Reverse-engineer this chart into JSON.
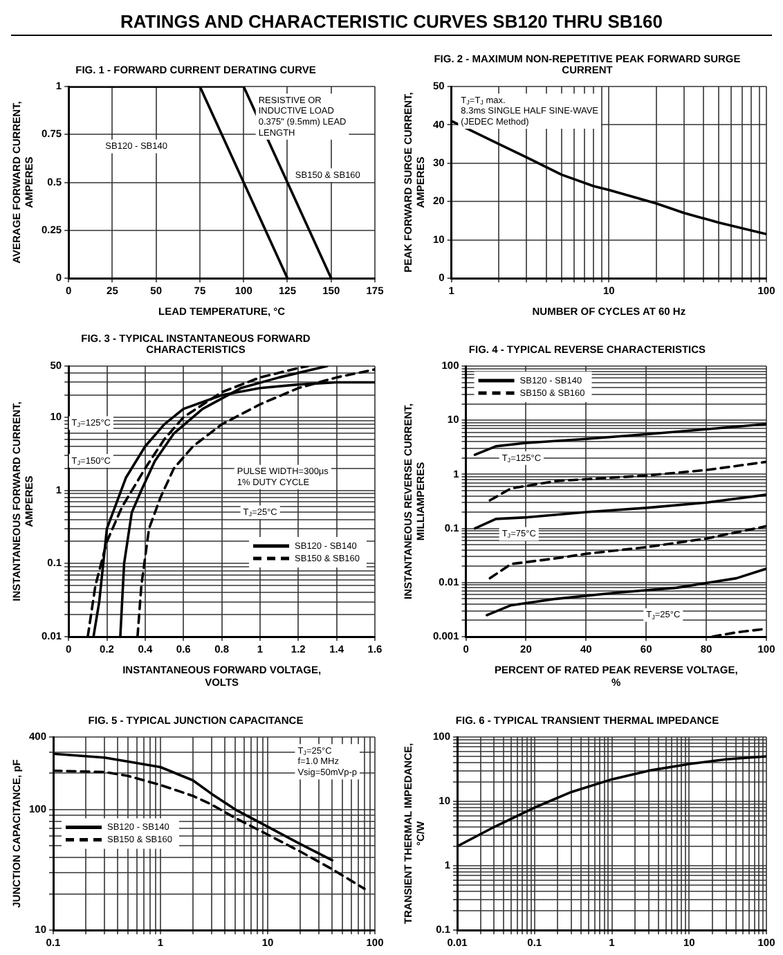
{
  "chart_data": [
    {
      "type": "other",
      "title": "RATINGS AND CHARACTERISTIC CURVES SB120 THRU SB160"
    },
    {
      "type": "line",
      "title": "FIG. 1 - FORWARD CURRENT DERATING CURVE",
      "xlabel": "LEAD TEMPERATURE, °C",
      "ylabel": "AVERAGE FORWARD CURRENT, AMPERES",
      "xlim": [
        0,
        175
      ],
      "xticks": [
        0,
        25,
        50,
        75,
        100,
        125,
        150,
        175
      ],
      "ylim": [
        0,
        1
      ],
      "yticks": [
        0,
        0.25,
        0.5,
        0.75,
        1
      ],
      "grid": true,
      "series": [
        {
          "color": "#000000",
          "x": [
            0,
            75,
            125
          ],
          "values": [
            1,
            1,
            0
          ]
        },
        {
          "color": "#000000",
          "x": [
            0,
            100,
            150
          ],
          "values": [
            1,
            1,
            0
          ]
        }
      ],
      "annotations": [
        "RESISTIVE OR\nINDUCTIVE LOAD\n0.375\" (9.5mm) LEAD\nLENGTH",
        "SB120 - SB140",
        "SB150 & SB160"
      ]
    },
    {
      "type": "line",
      "title": "FIG. 2 - MAXIMUM NON-REPETITIVE PEAK FORWARD SURGE CURRENT",
      "xlabel": "NUMBER OF CYCLES AT 60 Hz",
      "ylabel": "PEAK FORWARD SURGE CURRENT, AMPERES",
      "log": "x",
      "xlim": [
        1,
        100
      ],
      "xticks": [
        1,
        {
          "value": 2,
          "label": null
        },
        {
          "value": 3,
          "label": null
        },
        {
          "value": 4,
          "label": null
        },
        {
          "value": 5,
          "label": null
        },
        {
          "value": 6,
          "label": null
        },
        {
          "value": 7,
          "label": null
        },
        {
          "value": 8,
          "label": null
        },
        {
          "value": 9,
          "label": null
        },
        10,
        {
          "value": 20,
          "label": null
        },
        {
          "value": 30,
          "label": null
        },
        {
          "value": 40,
          "label": null
        },
        {
          "value": 50,
          "label": null
        },
        {
          "value": 60,
          "label": null
        },
        {
          "value": 70,
          "label": null
        },
        {
          "value": 80,
          "label": null
        },
        {
          "value": 90,
          "label": null
        },
        100
      ],
      "ylim": [
        0,
        50
      ],
      "yticks": [
        0,
        10,
        20,
        30,
        40,
        50
      ],
      "grid": true,
      "series": [
        {
          "color": "#000000",
          "x": [
            1,
            2,
            3,
            5,
            8,
            10,
            20,
            30,
            50,
            100
          ],
          "values": [
            41,
            35,
            31.5,
            27,
            24,
            23,
            19.5,
            17,
            14.5,
            11.5
          ]
        }
      ],
      "annotations": [
        "T$_{J}$=T$_{J}$ max.\n8.3ms SINGLE HALF SINE-WAVE\n(JEDEC Method)"
      ]
    },
    {
      "type": "line",
      "title": "FIG. 3 - TYPICAL INSTANTANEOUS FORWARD CHARACTERISTICS",
      "xlabel": "INSTANTANEOUS FORWARD VOLTAGE, VOLTS",
      "ylabel": "INSTANTANEOUS FORWARD CURRENT, AMPERES",
      "log": "y",
      "xlim": [
        0,
        1.6
      ],
      "xticks": [
        0,
        0.2,
        0.4,
        0.6,
        0.8,
        1.0,
        1.2,
        1.4,
        1.6
      ],
      "ylim": [
        0.01,
        50
      ],
      "yticks": [
        0.01,
        {
          "value": 0.02,
          "label": null
        },
        {
          "value": 0.03,
          "label": null
        },
        {
          "value": 0.04,
          "label": null
        },
        {
          "value": 0.05,
          "label": null
        },
        {
          "value": 0.06,
          "label": null
        },
        {
          "value": 0.07,
          "label": null
        },
        {
          "value": 0.08,
          "label": null
        },
        {
          "value": 0.09,
          "label": null
        },
        0.1,
        {
          "value": 0.2,
          "label": null
        },
        {
          "value": 0.3,
          "label": null
        },
        {
          "value": 0.4,
          "label": null
        },
        {
          "value": 0.5,
          "label": null
        },
        {
          "value": 0.6,
          "label": null
        },
        {
          "value": 0.7,
          "label": null
        },
        {
          "value": 0.8,
          "label": null
        },
        {
          "value": 0.9,
          "label": null
        },
        1,
        {
          "value": 2,
          "label": null
        },
        {
          "value": 3,
          "label": null
        },
        {
          "value": 4,
          "label": null
        },
        {
          "value": 5,
          "label": null
        },
        {
          "value": 6,
          "label": null
        },
        {
          "value": 7,
          "label": null
        },
        {
          "value": 8,
          "label": null
        },
        {
          "value": 9,
          "label": null
        },
        10,
        {
          "value": 20,
          "label": null
        },
        {
          "value": 30,
          "label": null
        },
        {
          "value": 40,
          "label": null
        },
        50
      ],
      "grid": true,
      "legend": "bottom right",
      "series": [
        {
          "name": "SB120 - SB140",
          "color": "#000000",
          "line_style": "solid",
          "x": [
            0.13,
            0.16,
            0.2,
            0.3,
            0.4,
            0.5,
            0.6,
            0.8,
            1.0,
            1.2,
            1.4,
            1.6
          ],
          "values": [
            0.01,
            0.03,
            0.3,
            1.5,
            4,
            8,
            13,
            20,
            25,
            28,
            30,
            30
          ]
        },
        {
          "color": "#000000",
          "line_style": "solid",
          "x": [
            0.27,
            0.29,
            0.33,
            0.38,
            0.45,
            0.55,
            0.7,
            0.9,
            1.1,
            1.35
          ],
          "values": [
            0.01,
            0.1,
            0.5,
            1,
            2.5,
            6,
            13,
            25,
            35,
            50
          ]
        },
        {
          "name": "SB150 & SB160",
          "color": "#000000",
          "line_style": "dashed",
          "x": [
            0.1,
            0.14,
            0.2,
            0.28,
            0.4,
            0.5,
            0.6,
            0.8,
            1.0,
            1.2,
            1.25
          ],
          "values": [
            0.01,
            0.05,
            0.2,
            0.6,
            2,
            5,
            10,
            22,
            35,
            47,
            50
          ]
        },
        {
          "color": "#000000",
          "line_style": "dashed",
          "x": [
            0.36,
            0.38,
            0.42,
            0.48,
            0.55,
            0.65,
            0.8,
            1.0,
            1.2,
            1.4,
            1.6
          ],
          "values": [
            0.01,
            0.05,
            0.3,
            0.8,
            2,
            4,
            8,
            15,
            25,
            35,
            45
          ]
        }
      ],
      "annotations": [
        "PULSE WIDTH=300μs\n1% DUTY CYCLE",
        "T$_{J}$=125°C",
        "T$_{J}$=150°C",
        "T$_{J}$=25°C"
      ]
    },
    {
      "type": "line",
      "title": "FIG. 4 - TYPICAL REVERSE CHARACTERISTICS",
      "xlabel": "PERCENT OF RATED PEAK REVERSE VOLTAGE, %",
      "ylabel": "INSTANTANEOUS REVERSE CURRENT, MILLIAMPERES",
      "log": "y",
      "xlim": [
        0,
        100
      ],
      "xticks": [
        0,
        20,
        40,
        60,
        80,
        100
      ],
      "ylim": [
        0.001,
        100
      ],
      "yticks": [
        0.001,
        {
          "value": 0.002,
          "label": null
        },
        {
          "value": 0.003,
          "label": null
        },
        {
          "value": 0.004,
          "label": null
        },
        {
          "value": 0.005,
          "label": null
        },
        {
          "value": 0.006,
          "label": null
        },
        {
          "value": 0.007,
          "label": null
        },
        {
          "value": 0.008,
          "label": null
        },
        {
          "value": 0.009,
          "label": null
        },
        0.01,
        {
          "value": 0.02,
          "label": null
        },
        {
          "value": 0.03,
          "label": null
        },
        {
          "value": 0.04,
          "label": null
        },
        {
          "value": 0.05,
          "label": null
        },
        {
          "value": 0.06,
          "label": null
        },
        {
          "value": 0.07,
          "label": null
        },
        {
          "value": 0.08,
          "label": null
        },
        {
          "value": 0.09,
          "label": null
        },
        0.1,
        {
          "value": 0.2,
          "label": null
        },
        {
          "value": 0.3,
          "label": null
        },
        {
          "value": 0.4,
          "label": null
        },
        {
          "value": 0.5,
          "label": null
        },
        {
          "value": 0.6,
          "label": null
        },
        {
          "value": 0.7,
          "label": null
        },
        {
          "value": 0.8,
          "label": null
        },
        {
          "value": 0.9,
          "label": null
        },
        1,
        {
          "value": 2,
          "label": null
        },
        {
          "value": 3,
          "label": null
        },
        {
          "value": 4,
          "label": null
        },
        {
          "value": 5,
          "label": null
        },
        {
          "value": 6,
          "label": null
        },
        {
          "value": 7,
          "label": null
        },
        {
          "value": 8,
          "label": null
        },
        {
          "value": 9,
          "label": null
        },
        10,
        {
          "value": 20,
          "label": null
        },
        {
          "value": 30,
          "label": null
        },
        {
          "value": 40,
          "label": null
        },
        {
          "value": 50,
          "label": null
        },
        {
          "value": 60,
          "label": null
        },
        {
          "value": 70,
          "label": null
        },
        {
          "value": 80,
          "label": null
        },
        {
          "value": 90,
          "label": null
        },
        100
      ],
      "grid": true,
      "legend": "top left",
      "series": [
        {
          "name": "SB120 - SB140",
          "color": "#000000",
          "line_style": "solid",
          "x": [
            3,
            10,
            20,
            40,
            60,
            80,
            100
          ],
          "values": [
            2.3,
            3.3,
            3.8,
            4.5,
            5.5,
            6.8,
            8.5
          ]
        },
        {
          "name": "SB150 & SB160",
          "color": "#000000",
          "line_style": "dashed",
          "x": [
            8,
            15,
            30,
            60,
            80,
            100
          ],
          "values": [
            0.33,
            0.55,
            0.75,
            0.95,
            1.2,
            1.7
          ]
        },
        {
          "color": "#000000",
          "line_style": "solid",
          "x": [
            3,
            10,
            20,
            40,
            60,
            80,
            100
          ],
          "values": [
            0.1,
            0.15,
            0.16,
            0.2,
            0.24,
            0.3,
            0.42
          ]
        },
        {
          "color": "#000000",
          "line_style": "dashed",
          "x": [
            8,
            15,
            30,
            40,
            60,
            80,
            100
          ],
          "values": [
            0.012,
            0.022,
            0.028,
            0.034,
            0.045,
            0.065,
            0.11
          ]
        },
        {
          "color": "#000000",
          "line_style": "solid",
          "x": [
            7,
            15,
            30,
            50,
            70,
            90,
            100
          ],
          "values": [
            0.0025,
            0.0038,
            0.005,
            0.0065,
            0.008,
            0.012,
            0.018
          ]
        },
        {
          "color": "#000000",
          "line_style": "dashed",
          "x": [
            82,
            90,
            100
          ],
          "values": [
            0.001,
            0.0012,
            0.0014
          ]
        }
      ],
      "annotations": [
        "T$_{J}$=125°C",
        "T$_{J}$=75°C",
        "T$_{J}$=25°C"
      ]
    },
    {
      "type": "line",
      "title": "FIG. 5 - TYPICAL JUNCTION CAPACITANCE",
      "ylabel": "JUNCTION CAPACITANCE, pF",
      "log": "xy",
      "xlim": [
        0.1,
        100
      ],
      "xticks": [
        0.1,
        {
          "value": 0.2,
          "label": null
        },
        {
          "value": 0.3,
          "label": null
        },
        {
          "value": 0.4,
          "label": null
        },
        {
          "value": 0.5,
          "label": null
        },
        {
          "value": 0.6,
          "label": null
        },
        {
          "value": 0.7,
          "label": null
        },
        {
          "value": 0.8,
          "label": null
        },
        {
          "value": 0.9,
          "label": null
        },
        1,
        {
          "value": 2,
          "label": null
        },
        {
          "value": 3,
          "label": null
        },
        {
          "value": 4,
          "label": null
        },
        {
          "value": 5,
          "label": null
        },
        {
          "value": 6,
          "label": null
        },
        {
          "value": 7,
          "label": null
        },
        {
          "value": 8,
          "label": null
        },
        {
          "value": 9,
          "label": null
        },
        10,
        {
          "value": 20,
          "label": null
        },
        {
          "value": 30,
          "label": null
        },
        {
          "value": 40,
          "label": null
        },
        {
          "value": 50,
          "label": null
        },
        {
          "value": 60,
          "label": null
        },
        {
          "value": 70,
          "label": null
        },
        {
          "value": 80,
          "label": null
        },
        {
          "value": 90,
          "label": null
        },
        100
      ],
      "ylim": [
        10,
        400
      ],
      "yticks": [
        10,
        {
          "value": 20,
          "label": null
        },
        {
          "value": 30,
          "label": null
        },
        {
          "value": 40,
          "label": null
        },
        {
          "value": 50,
          "label": null
        },
        {
          "value": 60,
          "label": null
        },
        {
          "value": 70,
          "label": null
        },
        {
          "value": 80,
          "label": null
        },
        {
          "value": 90,
          "label": null
        },
        100,
        {
          "value": 200,
          "label": null
        },
        {
          "value": 300,
          "label": null
        },
        400
      ],
      "grid": true,
      "legend": "left",
      "series": [
        {
          "name": "SB120 - SB140",
          "color": "#000000",
          "line_style": "solid",
          "x": [
            0.1,
            0.3,
            0.5,
            1,
            2,
            3,
            5,
            10,
            20,
            40
          ],
          "values": [
            290,
            270,
            250,
            225,
            175,
            135,
            100,
            72,
            52,
            38
          ]
        },
        {
          "name": "SB150 & SB160",
          "color": "#000000",
          "line_style": "dashed",
          "x": [
            0.1,
            0.3,
            0.5,
            1,
            2,
            3,
            5,
            10,
            20,
            40,
            80
          ],
          "values": [
            210,
            205,
            190,
            160,
            130,
            110,
            85,
            62,
            45,
            32,
            22
          ]
        }
      ],
      "annotations": [
        "T$_{J}$=25°C\nf=1.0 MHz\nVsig=50mVp-p"
      ]
    },
    {
      "type": "line",
      "title": "FIG. 6 - TYPICAL TRANSIENT THERMAL IMPEDANCE",
      "ylabel": "TRANSIENT THERMAL IMPEDANCE, °C/W",
      "log": "xy",
      "xlim": [
        0.01,
        100
      ],
      "xticks": [
        0.01,
        {
          "value": 0.02,
          "label": null
        },
        {
          "value": 0.03,
          "label": null
        },
        {
          "value": 0.04,
          "label": null
        },
        {
          "value": 0.05,
          "label": null
        },
        {
          "value": 0.06,
          "label": null
        },
        {
          "value": 0.07,
          "label": null
        },
        {
          "value": 0.08,
          "label": null
        },
        {
          "value": 0.09,
          "label": null
        },
        0.1,
        {
          "value": 0.2,
          "label": null
        },
        {
          "value": 0.3,
          "label": null
        },
        {
          "value": 0.4,
          "label": null
        },
        {
          "value": 0.5,
          "label": null
        },
        {
          "value": 0.6,
          "label": null
        },
        {
          "value": 0.7,
          "label": null
        },
        {
          "value": 0.8,
          "label": null
        },
        {
          "value": 0.9,
          "label": null
        },
        1,
        {
          "value": 2,
          "label": null
        },
        {
          "value": 3,
          "label": null
        },
        {
          "value": 4,
          "label": null
        },
        {
          "value": 5,
          "label": null
        },
        {
          "value": 6,
          "label": null
        },
        {
          "value": 7,
          "label": null
        },
        {
          "value": 8,
          "label": null
        },
        {
          "value": 9,
          "label": null
        },
        10,
        {
          "value": 20,
          "label": null
        },
        {
          "value": 30,
          "label": null
        },
        {
          "value": 40,
          "label": null
        },
        {
          "value": 50,
          "label": null
        },
        {
          "value": 60,
          "label": null
        },
        {
          "value": 70,
          "label": null
        },
        {
          "value": 80,
          "label": null
        },
        {
          "value": 90,
          "label": null
        },
        100
      ],
      "ylim": [
        0.1,
        100
      ],
      "yticks": [
        0.1,
        {
          "value": 0.2,
          "label": null
        },
        {
          "value": 0.3,
          "label": null
        },
        {
          "value": 0.4,
          "label": null
        },
        {
          "value": 0.5,
          "label": null
        },
        {
          "value": 0.6,
          "label": null
        },
        {
          "value": 0.7,
          "label": null
        },
        {
          "value": 0.8,
          "label": null
        },
        {
          "value": 0.9,
          "label": null
        },
        1,
        {
          "value": 2,
          "label": null
        },
        {
          "value": 3,
          "label": null
        },
        {
          "value": 4,
          "label": null
        },
        {
          "value": 5,
          "label": null
        },
        {
          "value": 6,
          "label": null
        },
        {
          "value": 7,
          "label": null
        },
        {
          "value": 8,
          "label": null
        },
        {
          "value": 9,
          "label": null
        },
        10,
        {
          "value": 20,
          "label": null
        },
        {
          "value": 30,
          "label": null
        },
        {
          "value": 40,
          "label": null
        },
        {
          "value": 50,
          "label": null
        },
        {
          "value": 60,
          "label": null
        },
        {
          "value": 70,
          "label": null
        },
        {
          "value": 80,
          "label": null
        },
        {
          "value": 90,
          "label": null
        },
        100
      ],
      "grid": true,
      "series": [
        {
          "color": "#000000",
          "x": [
            0.01,
            0.03,
            0.1,
            0.3,
            1,
            3,
            10,
            30,
            100
          ],
          "values": [
            2,
            4,
            8,
            14,
            22,
            30,
            38,
            45,
            50
          ]
        }
      ]
    }
  ]
}
